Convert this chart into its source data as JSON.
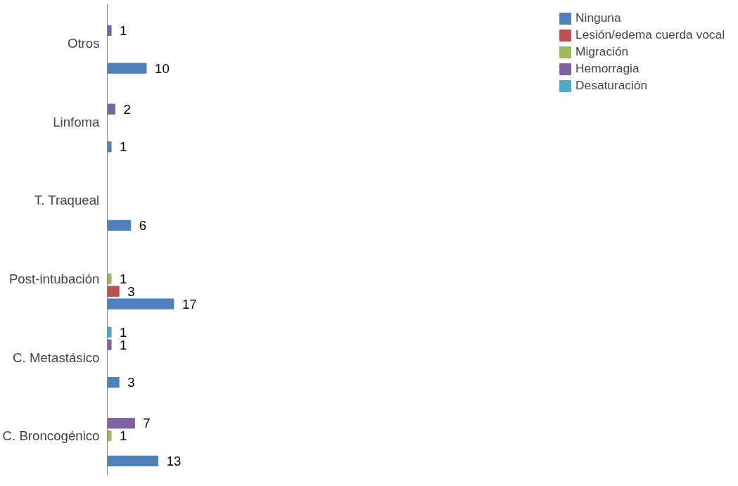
{
  "chart_data": {
    "type": "bar",
    "orientation": "horizontal",
    "categories": [
      "Otros",
      "Linfoma",
      "T. Traqueal",
      "Post-intubación",
      "C. Metastásico",
      "C. Broncogénico"
    ],
    "series": [
      {
        "name": "Ninguna",
        "color": "#4f81bd",
        "values": [
          10,
          1,
          6,
          17,
          3,
          13
        ]
      },
      {
        "name": "Lesión/edema cuerda vocal",
        "color": "#c0504d",
        "values": [
          null,
          null,
          null,
          3,
          null,
          null
        ]
      },
      {
        "name": "Migración",
        "color": "#9bbb59",
        "values": [
          null,
          null,
          null,
          1,
          null,
          1
        ]
      },
      {
        "name": "Hemorragia",
        "color": "#8064a2",
        "values": [
          1,
          2,
          null,
          null,
          1,
          7
        ]
      },
      {
        "name": "Desaturación",
        "color": "#4bacc6",
        "values": [
          null,
          null,
          null,
          null,
          1,
          null
        ]
      }
    ],
    "data_labels": true,
    "grid": false,
    "legend": "right",
    "tick_labels": "y"
  }
}
